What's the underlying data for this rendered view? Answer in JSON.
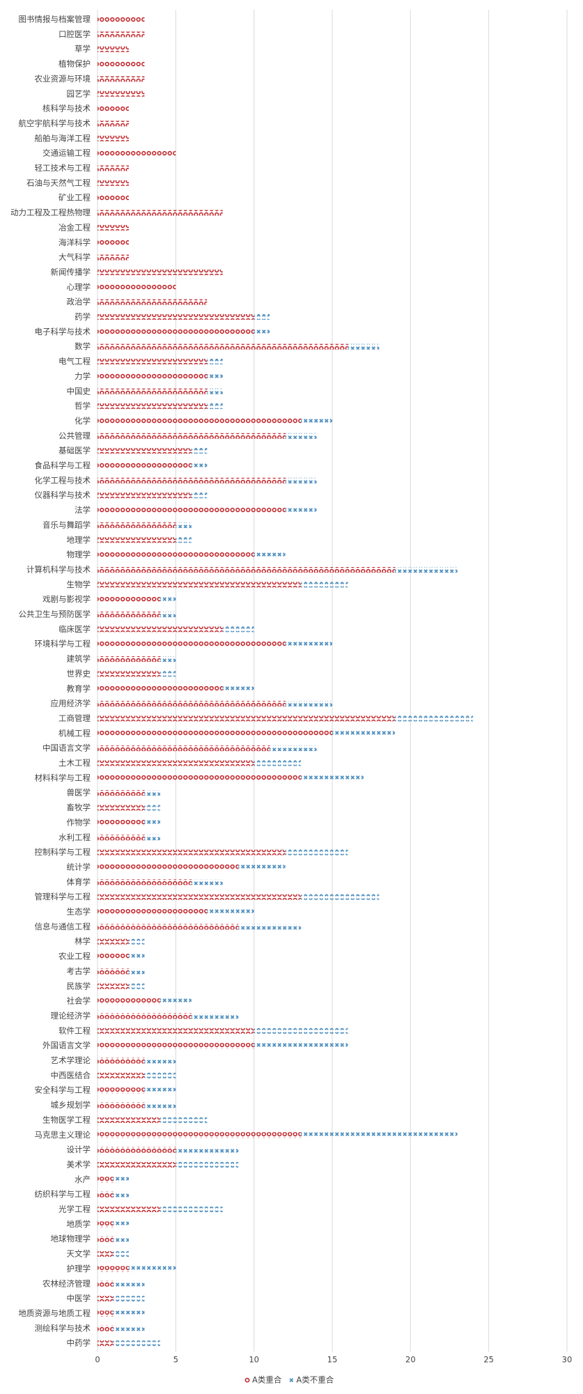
{
  "chart_data": {
    "type": "stacked-bar-horizontal",
    "categories": [
      "图书情报与档案管理",
      "口腔医学",
      "草学",
      "植物保护",
      "农业资源与环境",
      "园艺学",
      "核科学与技术",
      "航空宇航科学与技术",
      "船舶与海洋工程",
      "交通运输工程",
      "轻工技术与工程",
      "石油与天然气工程",
      "矿业工程",
      "动力工程及工程热物理",
      "冶金工程",
      "海洋科学",
      "大气科学",
      "新闻传播学",
      "心理学",
      "政治学",
      "药学",
      "电子科学与技术",
      "数学",
      "电气工程",
      "力学",
      "中国史",
      "哲学",
      "化学",
      "公共管理",
      "基础医学",
      "食品科学与工程",
      "化学工程与技术",
      "仪器科学与技术",
      "法学",
      "音乐与舞蹈学",
      "地理学",
      "物理学",
      "计算机科学与技术",
      "生物学",
      "戏剧与影视学",
      "公共卫生与预防医学",
      "临床医学",
      "环境科学与工程",
      "建筑学",
      "世界史",
      "教育学",
      "应用经济学",
      "工商管理",
      "机械工程",
      "中国语言文学",
      "土木工程",
      "材料科学与工程",
      "兽医学",
      "畜牧学",
      "作物学",
      "水利工程",
      "控制科学与工程",
      "统计学",
      "体育学",
      "管理科学与工程",
      "生态学",
      "信息与通信工程",
      "林学",
      "农业工程",
      "考古学",
      "民族学",
      "社会学",
      "理论经济学",
      "软件工程",
      "外国语言文学",
      "艺术学理论",
      "中西医结合",
      "安全科学与工程",
      "城乡规划学",
      "生物医学工程",
      "马克思主义理论",
      "设计学",
      "美术学",
      "水产",
      "纺织科学与工程",
      "光学工程",
      "地质学",
      "地球物理学",
      "天文学",
      "护理学",
      "农林经济管理",
      "中医学",
      "地质资源与地质工程",
      "测绘科学与技术",
      "中药学"
    ],
    "series": [
      {
        "name": "A类重合",
        "color": "#c0282d",
        "marker": "circle",
        "values": [
          3,
          3,
          2,
          3,
          3,
          3,
          2,
          2,
          2,
          5,
          2,
          2,
          2,
          8,
          2,
          2,
          2,
          8,
          5,
          7,
          10,
          10,
          16,
          7,
          7,
          7,
          7,
          13,
          12,
          6,
          6,
          12,
          6,
          12,
          5,
          5,
          10,
          19,
          13,
          4,
          4,
          8,
          12,
          4,
          4,
          8,
          12,
          19,
          15,
          11,
          10,
          13,
          3,
          3,
          3,
          3,
          12,
          9,
          6,
          13,
          7,
          9,
          2,
          2,
          2,
          2,
          4,
          6,
          10,
          10,
          3,
          3,
          3,
          3,
          4,
          13,
          5,
          5,
          1,
          1,
          4,
          1,
          1,
          1,
          2,
          1,
          1,
          1,
          1,
          1
        ]
      },
      {
        "name": "A类不重合",
        "color": "#4f8fbf",
        "marker": "x",
        "values": [
          0,
          0,
          0,
          0,
          0,
          0,
          0,
          0,
          0,
          0,
          0,
          0,
          0,
          0,
          0,
          0,
          0,
          0,
          0,
          0,
          1,
          1,
          2,
          1,
          1,
          1,
          1,
          2,
          2,
          1,
          1,
          2,
          1,
          2,
          1,
          1,
          2,
          4,
          3,
          1,
          1,
          2,
          3,
          1,
          1,
          2,
          3,
          5,
          4,
          3,
          3,
          4,
          1,
          1,
          1,
          1,
          4,
          3,
          2,
          5,
          3,
          4,
          1,
          1,
          1,
          1,
          2,
          3,
          6,
          6,
          2,
          2,
          2,
          2,
          3,
          10,
          4,
          4,
          1,
          1,
          4,
          1,
          1,
          1,
          3,
          2,
          2,
          2,
          2,
          3
        ]
      }
    ],
    "xlim": [
      0,
      30
    ],
    "xticks": [
      0,
      5,
      10,
      15,
      20,
      25,
      30
    ],
    "grid": true,
    "legend": "bottom"
  }
}
